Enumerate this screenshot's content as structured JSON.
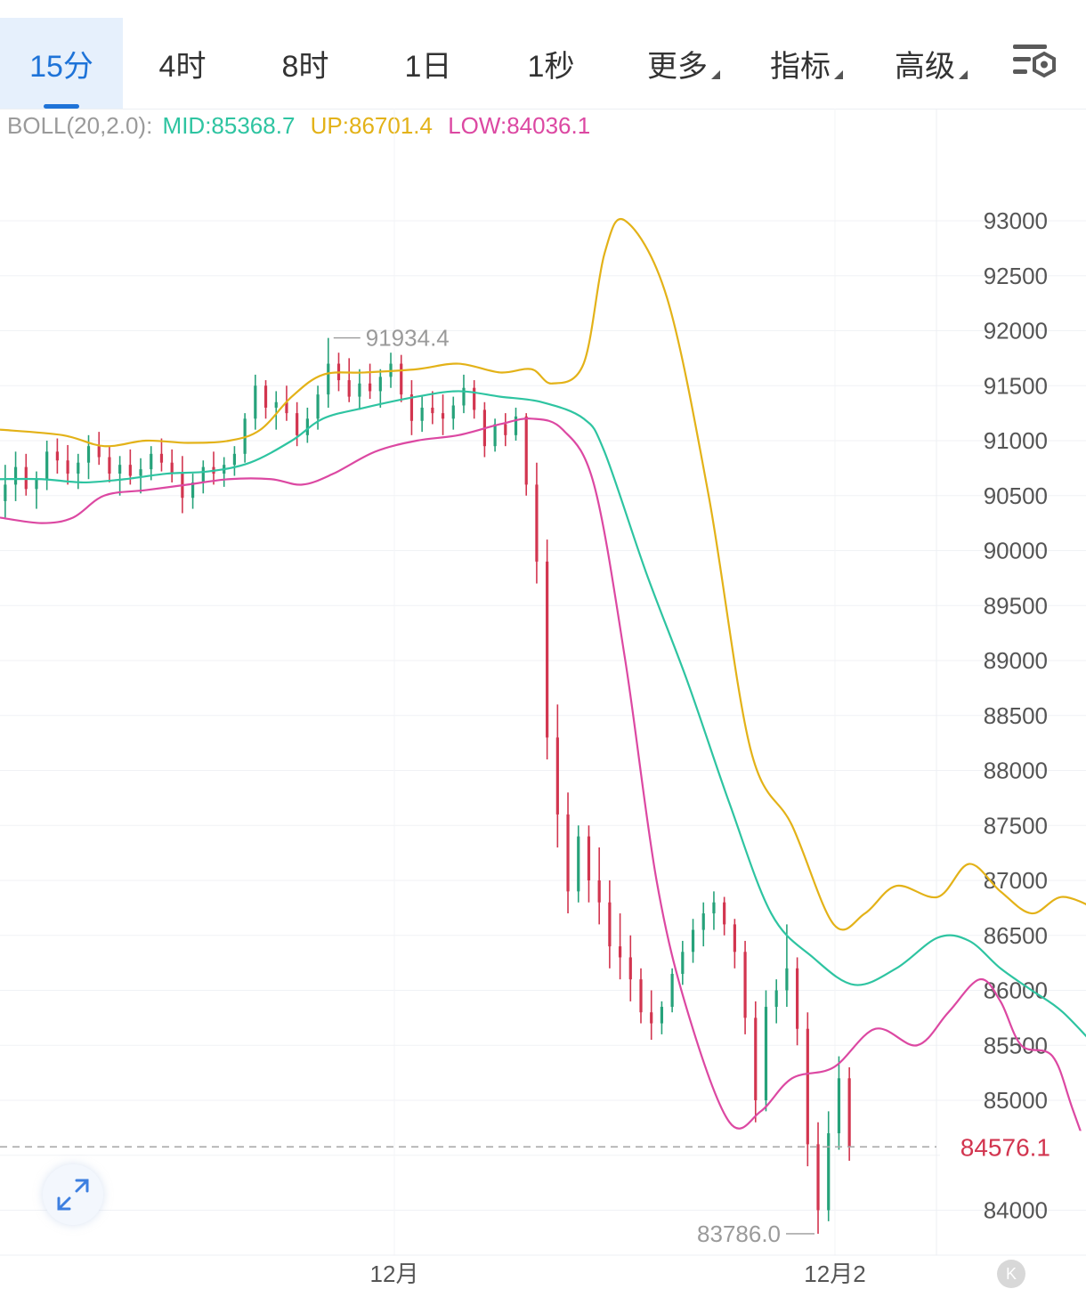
{
  "tabs": [
    {
      "label": "15分",
      "active": true,
      "dropdown": false
    },
    {
      "label": "4时",
      "active": false,
      "dropdown": false
    },
    {
      "label": "8时",
      "active": false,
      "dropdown": false
    },
    {
      "label": "1日",
      "active": false,
      "dropdown": false
    },
    {
      "label": "1秒",
      "active": false,
      "dropdown": false
    },
    {
      "label": "更多",
      "active": false,
      "dropdown": true
    },
    {
      "label": "指标",
      "active": false,
      "dropdown": true
    },
    {
      "label": "高级",
      "active": false,
      "dropdown": true
    }
  ],
  "settings_icon": "chart-settings-icon",
  "indicator": {
    "name": "BOLL(20,2.0):",
    "mid": "MID:85368.7",
    "up": "UP:86701.4",
    "low": "LOW:84036.1"
  },
  "colors": {
    "accent": "#1e73d8",
    "up_candle": "#26a27a",
    "down_candle": "#d2354f",
    "boll_mid": "#2ec4a1",
    "boll_up": "#e3b218",
    "boll_low": "#dc48a2"
  },
  "chart_data": {
    "type": "candlestick",
    "interval": "15分",
    "y_ticks": [
      93000,
      92500,
      92000,
      91500,
      91000,
      90500,
      90000,
      89500,
      89000,
      88500,
      88000,
      87500,
      87000,
      86500,
      86000,
      85500,
      85000,
      84000
    ],
    "ylim": [
      83700,
      93700
    ],
    "x_ticks": [
      "12月",
      "12月2"
    ],
    "current_price": "84576.1",
    "high_marker": "91934.4",
    "low_marker": "83786.0",
    "grid": true,
    "candles_ohlc": [
      [
        90450,
        90780,
        90300,
        90600
      ],
      [
        90600,
        90900,
        90450,
        90760
      ],
      [
        90760,
        90880,
        90500,
        90560
      ],
      [
        90560,
        90720,
        90380,
        90650
      ],
      [
        90650,
        91000,
        90550,
        90900
      ],
      [
        90900,
        91020,
        90700,
        90820
      ],
      [
        90820,
        90960,
        90600,
        90700
      ],
      [
        90700,
        90880,
        90560,
        90800
      ],
      [
        90800,
        91050,
        90650,
        90950
      ],
      [
        90950,
        91080,
        90780,
        90850
      ],
      [
        90850,
        90950,
        90620,
        90700
      ],
      [
        90700,
        90860,
        90500,
        90780
      ],
      [
        90780,
        90920,
        90600,
        90680
      ],
      [
        90680,
        90840,
        90520,
        90740
      ],
      [
        90740,
        90950,
        90640,
        90880
      ],
      [
        90880,
        91020,
        90720,
        90800
      ],
      [
        90800,
        90920,
        90620,
        90700
      ],
      [
        90700,
        90860,
        90340,
        90480
      ],
      [
        90480,
        90700,
        90380,
        90620
      ],
      [
        90620,
        90820,
        90520,
        90760
      ],
      [
        90760,
        90900,
        90600,
        90700
      ],
      [
        90700,
        90850,
        90580,
        90780
      ],
      [
        90780,
        90950,
        90680,
        90880
      ],
      [
        90880,
        91250,
        90800,
        91200
      ],
      [
        91200,
        91600,
        91100,
        91500
      ],
      [
        91500,
        91550,
        91200,
        91300
      ],
      [
        91300,
        91450,
        91100,
        91350
      ],
      [
        91350,
        91500,
        91180,
        91250
      ],
      [
        91250,
        91350,
        90950,
        91050
      ],
      [
        91050,
        91300,
        90980,
        91200
      ],
      [
        91200,
        91500,
        91100,
        91420
      ],
      [
        91420,
        91934,
        91300,
        91700
      ],
      [
        91700,
        91800,
        91450,
        91550
      ],
      [
        91550,
        91750,
        91350,
        91400
      ],
      [
        91400,
        91650,
        91280,
        91520
      ],
      [
        91520,
        91700,
        91380,
        91450
      ],
      [
        91450,
        91650,
        91300,
        91580
      ],
      [
        91580,
        91800,
        91480,
        91700
      ],
      [
        91700,
        91780,
        91350,
        91420
      ],
      [
        91420,
        91550,
        91050,
        91180
      ],
      [
        91180,
        91400,
        91080,
        91300
      ],
      [
        91300,
        91450,
        91150,
        91250
      ],
      [
        91250,
        91420,
        91050,
        91200
      ],
      [
        91200,
        91400,
        91100,
        91320
      ],
      [
        91320,
        91600,
        91250,
        91480
      ],
      [
        91480,
        91550,
        91200,
        91280
      ],
      [
        91280,
        91350,
        90850,
        90950
      ],
      [
        90950,
        91200,
        90900,
        91150
      ],
      [
        91150,
        91250,
        90950,
        91050
      ],
      [
        91050,
        91300,
        91000,
        91220
      ],
      [
        91220,
        91250,
        90500,
        90600
      ],
      [
        90600,
        90800,
        89700,
        89900
      ],
      [
        89900,
        90100,
        88100,
        88300
      ],
      [
        88300,
        88600,
        87300,
        87600
      ],
      [
        87600,
        87800,
        86700,
        86900
      ],
      [
        86900,
        87500,
        86800,
        87400
      ],
      [
        87400,
        87500,
        86800,
        87000
      ],
      [
        87000,
        87300,
        86600,
        86800
      ],
      [
        86800,
        87000,
        86200,
        86400
      ],
      [
        86400,
        86700,
        86100,
        86300
      ],
      [
        86300,
        86500,
        85900,
        86100
      ],
      [
        86100,
        86200,
        85700,
        85800
      ],
      [
        85800,
        86000,
        85550,
        85700
      ],
      [
        85700,
        85900,
        85600,
        85850
      ],
      [
        85850,
        86200,
        85800,
        86150
      ],
      [
        86150,
        86450,
        86050,
        86350
      ],
      [
        86350,
        86650,
        86250,
        86550
      ],
      [
        86550,
        86800,
        86400,
        86700
      ],
      [
        86700,
        86900,
        86550,
        86800
      ],
      [
        86800,
        86850,
        86500,
        86600
      ],
      [
        86600,
        86650,
        86200,
        86350
      ],
      [
        86350,
        86450,
        85600,
        85750
      ],
      [
        85750,
        85900,
        84800,
        85000
      ],
      [
        85000,
        86000,
        84900,
        85850
      ],
      [
        85850,
        86100,
        85700,
        86000
      ],
      [
        86000,
        86600,
        85850,
        86200
      ],
      [
        86200,
        86300,
        85500,
        85650
      ],
      [
        85650,
        85800,
        84400,
        84600
      ],
      [
        84600,
        84800,
        83786,
        84000
      ],
      [
        84000,
        84900,
        83900,
        84700
      ],
      [
        84700,
        85400,
        84550,
        85200
      ],
      [
        85200,
        85300,
        84450,
        84576
      ]
    ],
    "boll_up_path": [
      [
        0,
        91100
      ],
      [
        6,
        91050
      ],
      [
        10,
        90950
      ],
      [
        14,
        91000
      ],
      [
        18,
        90980
      ],
      [
        22,
        91000
      ],
      [
        25,
        91100
      ],
      [
        28,
        91400
      ],
      [
        31,
        91600
      ],
      [
        35,
        91620
      ],
      [
        40,
        91650
      ],
      [
        44,
        91700
      ],
      [
        48,
        91620
      ],
      [
        51,
        91650
      ],
      [
        53,
        91520
      ],
      [
        56,
        91700
      ],
      [
        58,
        92700
      ],
      [
        60,
        93000
      ],
      [
        64,
        92300
      ],
      [
        68,
        90500
      ],
      [
        72,
        88200
      ],
      [
        76,
        87500
      ],
      [
        80,
        86600
      ],
      [
        83,
        86700
      ],
      [
        86,
        86950
      ],
      [
        90,
        86850
      ],
      [
        93,
        87150
      ],
      [
        96,
        86900
      ],
      [
        99,
        86700
      ],
      [
        102,
        86850
      ],
      [
        106,
        86700
      ]
    ],
    "boll_mid_path": [
      [
        0,
        90650
      ],
      [
        4,
        90650
      ],
      [
        8,
        90620
      ],
      [
        12,
        90650
      ],
      [
        16,
        90700
      ],
      [
        20,
        90720
      ],
      [
        24,
        90800
      ],
      [
        28,
        91000
      ],
      [
        31,
        91200
      ],
      [
        35,
        91300
      ],
      [
        40,
        91400
      ],
      [
        44,
        91450
      ],
      [
        48,
        91400
      ],
      [
        52,
        91350
      ],
      [
        56,
        91200
      ],
      [
        58,
        90900
      ],
      [
        62,
        89800
      ],
      [
        66,
        88800
      ],
      [
        70,
        87700
      ],
      [
        74,
        86700
      ],
      [
        78,
        86300
      ],
      [
        82,
        86050
      ],
      [
        86,
        86200
      ],
      [
        90,
        86480
      ],
      [
        93,
        86450
      ],
      [
        96,
        86200
      ],
      [
        99,
        86000
      ],
      [
        102,
        85800
      ],
      [
        106,
        85400
      ]
    ],
    "boll_low_path": [
      [
        0,
        90300
      ],
      [
        4,
        90250
      ],
      [
        7,
        90300
      ],
      [
        10,
        90500
      ],
      [
        14,
        90550
      ],
      [
        18,
        90600
      ],
      [
        22,
        90650
      ],
      [
        26,
        90650
      ],
      [
        29,
        90600
      ],
      [
        32,
        90700
      ],
      [
        36,
        90900
      ],
      [
        40,
        91000
      ],
      [
        44,
        91050
      ],
      [
        48,
        91150
      ],
      [
        51,
        91200
      ],
      [
        54,
        91100
      ],
      [
        57,
        90600
      ],
      [
        60,
        89000
      ],
      [
        63,
        87000
      ],
      [
        66,
        85800
      ],
      [
        70,
        84800
      ],
      [
        73,
        84900
      ],
      [
        76,
        85200
      ],
      [
        80,
        85300
      ],
      [
        84,
        85650
      ],
      [
        88,
        85500
      ],
      [
        91,
        85800
      ],
      [
        94,
        86100
      ],
      [
        96,
        85900
      ],
      [
        98,
        85500
      ],
      [
        101,
        85400
      ],
      [
        103,
        84900
      ],
      [
        106,
        84100
      ]
    ]
  }
}
